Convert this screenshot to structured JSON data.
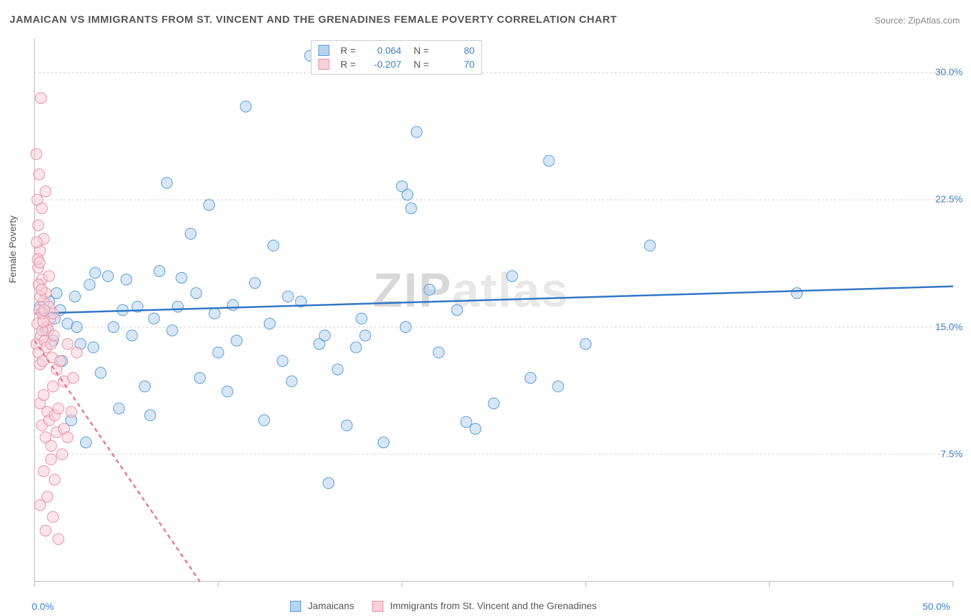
{
  "title": "JAMAICAN VS IMMIGRANTS FROM ST. VINCENT AND THE GRENADINES FEMALE POVERTY CORRELATION CHART",
  "source": "Source: ZipAtlas.com",
  "watermark_a": "ZIP",
  "watermark_b": "atlas",
  "y_axis_label": "Female Poverty",
  "colors": {
    "blue_fill": "#b6d4f2",
    "blue_stroke": "#5a9bd5",
    "blue_line": "#2e75c6",
    "pink_fill": "#f9cfd8",
    "pink_stroke": "#e791a6",
    "pink_line": "#e57a93",
    "grid": "#d0d0d0",
    "axis": "#cccccc",
    "tick_text": "#3d7cc9",
    "title_text": "#555555"
  },
  "chart": {
    "type": "scatter",
    "x_range": [
      0,
      50
    ],
    "y_range": [
      0,
      32
    ],
    "x_ticks": [
      0,
      10,
      20,
      30,
      40,
      50
    ],
    "x_tick_labels": {
      "0": "0.0%",
      "50": "50.0%"
    },
    "y_ticks": [
      7.5,
      15.0,
      22.5,
      30.0
    ],
    "y_tick_labels": [
      "7.5%",
      "15.0%",
      "22.5%",
      "30.0%"
    ],
    "marker_radius": 8,
    "marker_opacity": 0.55,
    "line_width": 2.5
  },
  "series": [
    {
      "name": "Jamaicans",
      "color_key": "blue",
      "R": "0.064",
      "N": "80",
      "trend": {
        "x1": 0,
        "y1": 15.8,
        "x2": 50,
        "y2": 17.4,
        "dash": false
      },
      "points": [
        [
          0.5,
          15.8
        ],
        [
          0.8,
          16.5
        ],
        [
          1.0,
          14.2
        ],
        [
          1.2,
          17.0
        ],
        [
          1.5,
          13.0
        ],
        [
          1.8,
          15.2
        ],
        [
          2.0,
          9.5
        ],
        [
          2.2,
          16.8
        ],
        [
          2.5,
          14.0
        ],
        [
          2.8,
          8.2
        ],
        [
          3.0,
          17.5
        ],
        [
          3.3,
          18.2
        ],
        [
          3.6,
          12.3
        ],
        [
          4.0,
          18.0
        ],
        [
          4.3,
          15.0
        ],
        [
          4.6,
          10.2
        ],
        [
          5.0,
          17.8
        ],
        [
          5.3,
          14.5
        ],
        [
          5.6,
          16.2
        ],
        [
          6.0,
          11.5
        ],
        [
          6.3,
          9.8
        ],
        [
          6.8,
          18.3
        ],
        [
          7.2,
          23.5
        ],
        [
          7.5,
          14.8
        ],
        [
          8.0,
          17.9
        ],
        [
          8.5,
          20.5
        ],
        [
          9.0,
          12.0
        ],
        [
          9.5,
          22.2
        ],
        [
          10.0,
          13.5
        ],
        [
          10.5,
          11.2
        ],
        [
          11.0,
          14.2
        ],
        [
          11.5,
          28.0
        ],
        [
          12.0,
          17.6
        ],
        [
          12.5,
          9.5
        ],
        [
          13.0,
          19.8
        ],
        [
          13.5,
          13.0
        ],
        [
          14.0,
          11.8
        ],
        [
          14.5,
          16.5
        ],
        [
          15.0,
          31.0
        ],
        [
          15.5,
          14.0
        ],
        [
          16.0,
          5.8
        ],
        [
          16.5,
          12.5
        ],
        [
          17.0,
          9.2
        ],
        [
          17.5,
          13.8
        ],
        [
          18.0,
          14.5
        ],
        [
          19.0,
          8.2
        ],
        [
          20.0,
          23.3
        ],
        [
          20.5,
          22.0
        ],
        [
          20.8,
          26.5
        ],
        [
          20.2,
          15.0
        ],
        [
          21.5,
          17.2
        ],
        [
          22.0,
          13.5
        ],
        [
          23.0,
          16.0
        ],
        [
          23.5,
          9.4
        ],
        [
          24.0,
          9.0
        ],
        [
          26.0,
          18.0
        ],
        [
          27.0,
          12.0
        ],
        [
          28.0,
          24.8
        ],
        [
          28.5,
          11.5
        ],
        [
          33.5,
          19.8
        ],
        [
          41.5,
          17.0
        ],
        [
          0.3,
          16.2
        ],
        [
          0.6,
          14.8
        ],
        [
          1.1,
          15.5
        ],
        [
          1.4,
          16.0
        ],
        [
          2.3,
          15.0
        ],
        [
          3.2,
          13.8
        ],
        [
          4.8,
          16.0
        ],
        [
          6.5,
          15.5
        ],
        [
          7.8,
          16.2
        ],
        [
          8.8,
          17.0
        ],
        [
          9.8,
          15.8
        ],
        [
          10.8,
          16.3
        ],
        [
          12.8,
          15.2
        ],
        [
          13.8,
          16.8
        ],
        [
          15.8,
          14.5
        ],
        [
          17.8,
          15.5
        ],
        [
          20.3,
          22.8
        ],
        [
          25.0,
          10.5
        ],
        [
          30.0,
          14.0
        ]
      ]
    },
    {
      "name": "Immigrants from St. Vincent and the Grenadines",
      "color_key": "pink",
      "R": "-0.207",
      "N": "70",
      "trend": {
        "x1": 0,
        "y1": 14.2,
        "x2": 9,
        "y2": 0,
        "dash": true
      },
      "points": [
        [
          0.1,
          14.0
        ],
        [
          0.15,
          15.2
        ],
        [
          0.2,
          13.5
        ],
        [
          0.25,
          16.0
        ],
        [
          0.3,
          12.8
        ],
        [
          0.35,
          14.5
        ],
        [
          0.4,
          15.8
        ],
        [
          0.45,
          13.0
        ],
        [
          0.5,
          16.5
        ],
        [
          0.55,
          14.2
        ],
        [
          0.6,
          17.0
        ],
        [
          0.65,
          13.8
        ],
        [
          0.7,
          15.0
        ],
        [
          0.75,
          14.8
        ],
        [
          0.8,
          16.2
        ],
        [
          0.85,
          15.5
        ],
        [
          0.9,
          14.0
        ],
        [
          0.95,
          13.2
        ],
        [
          1.0,
          15.8
        ],
        [
          1.05,
          14.5
        ],
        [
          0.2,
          18.5
        ],
        [
          0.3,
          19.5
        ],
        [
          0.4,
          17.8
        ],
        [
          0.5,
          20.2
        ],
        [
          0.15,
          22.5
        ],
        [
          0.25,
          24.0
        ],
        [
          0.1,
          25.2
        ],
        [
          0.6,
          23.0
        ],
        [
          0.35,
          28.5
        ],
        [
          0.8,
          18.0
        ],
        [
          0.3,
          10.5
        ],
        [
          0.4,
          9.2
        ],
        [
          0.5,
          11.0
        ],
        [
          0.6,
          8.5
        ],
        [
          0.7,
          10.0
        ],
        [
          0.8,
          9.5
        ],
        [
          0.9,
          8.0
        ],
        [
          1.0,
          11.5
        ],
        [
          1.1,
          9.8
        ],
        [
          1.2,
          8.8
        ],
        [
          1.3,
          10.2
        ],
        [
          0.5,
          6.5
        ],
        [
          0.7,
          5.0
        ],
        [
          0.9,
          7.2
        ],
        [
          1.1,
          6.0
        ],
        [
          0.3,
          4.5
        ],
        [
          0.6,
          3.0
        ],
        [
          1.0,
          3.8
        ],
        [
          1.3,
          2.5
        ],
        [
          1.5,
          7.5
        ],
        [
          1.6,
          9.0
        ],
        [
          1.8,
          8.5
        ],
        [
          2.0,
          10.0
        ],
        [
          1.2,
          12.5
        ],
        [
          1.4,
          13.0
        ],
        [
          1.6,
          11.8
        ],
        [
          1.8,
          14.0
        ],
        [
          2.1,
          12.0
        ],
        [
          2.3,
          13.5
        ],
        [
          0.2,
          21.0
        ],
        [
          0.4,
          22.0
        ],
        [
          0.12,
          20.0
        ],
        [
          0.18,
          19.0
        ],
        [
          0.22,
          17.5
        ],
        [
          0.28,
          18.8
        ],
        [
          0.32,
          16.8
        ],
        [
          0.38,
          17.2
        ],
        [
          0.42,
          14.8
        ],
        [
          0.48,
          15.3
        ],
        [
          0.52,
          16.0
        ]
      ]
    }
  ]
}
